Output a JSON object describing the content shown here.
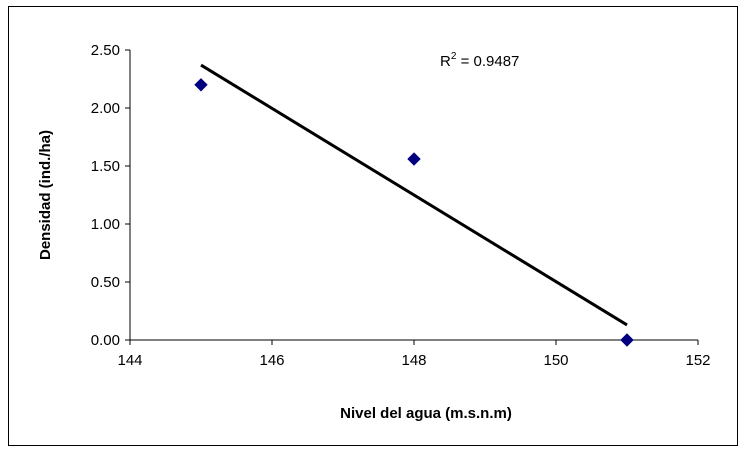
{
  "chart_data": {
    "type": "scatter",
    "xlabel": "Nivel del agua (m.s.n.m)",
    "ylabel": "Densidad (ind./ha)",
    "xlim": [
      144,
      152
    ],
    "ylim": [
      0,
      2.5
    ],
    "x_ticks": [
      "144",
      "146",
      "148",
      "150",
      "152"
    ],
    "y_ticks": [
      "0.00",
      "0.50",
      "1.00",
      "1.50",
      "2.00",
      "2.50"
    ],
    "grid": false,
    "legend": "none",
    "marker_color": "#000080",
    "trendline_color": "#000000",
    "series": [
      {
        "x": [
          145,
          148,
          151
        ],
        "y": [
          2.2,
          1.56,
          0.0
        ]
      }
    ],
    "trendline": {
      "x": [
        145,
        151
      ],
      "y": [
        2.37,
        0.13
      ],
      "r2_label_prefix": "R",
      "r2_label_sup": "2",
      "r2_label_value": " = 0.9487"
    }
  }
}
